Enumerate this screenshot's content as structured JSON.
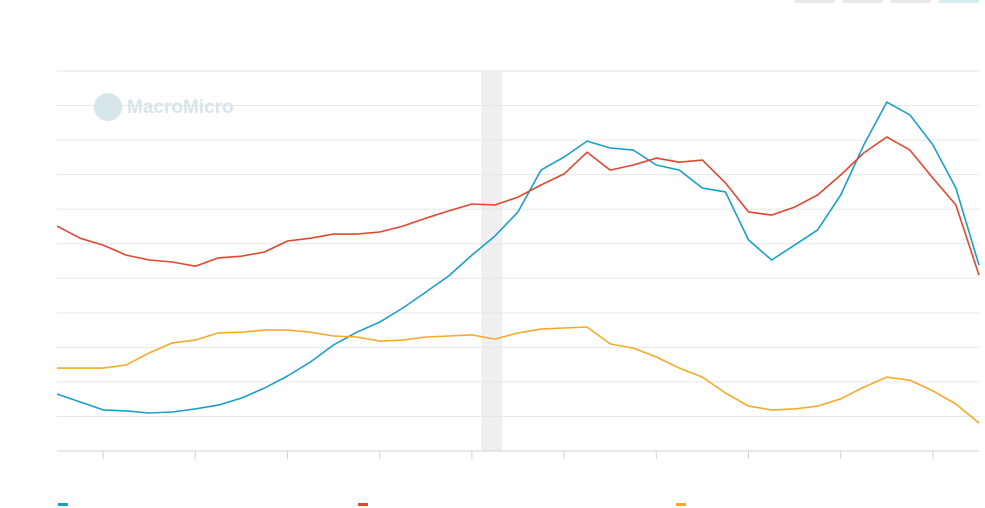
{
  "watermark": "MacroMicro",
  "chart_data": {
    "type": "line",
    "x": [
      0,
      2.5,
      5,
      7.5,
      10,
      12.5,
      15,
      17.5,
      20,
      22.5,
      25,
      27.5,
      30,
      32.5,
      35,
      37.5,
      40,
      42.5,
      45,
      47.5,
      50,
      52.5,
      55,
      57.5,
      60,
      62.5,
      65,
      67.5,
      70,
      72.5,
      75,
      77.5,
      80,
      82.5,
      85,
      87.5,
      90,
      92.5,
      95,
      97.5,
      100
    ],
    "xlim": [
      0,
      100
    ],
    "xticks": [
      5,
      15,
      25,
      35,
      45,
      55,
      65,
      75,
      85,
      95
    ],
    "ylim": [
      0,
      11
    ],
    "yticks": [
      0,
      1,
      2,
      3,
      4,
      5,
      6,
      7,
      8,
      9,
      10,
      11
    ],
    "grid": true,
    "shaded_range": [
      46,
      48.3
    ],
    "series": [
      {
        "color": "#1aa0c8",
        "values": [
          1.65,
          1.42,
          1.19,
          1.16,
          1.1,
          1.13,
          1.22,
          1.33,
          1.53,
          1.82,
          2.17,
          2.58,
          3.07,
          3.44,
          3.73,
          4.14,
          4.6,
          5.07,
          5.67,
          6.22,
          6.92,
          8.13,
          8.51,
          8.97,
          8.77,
          8.71,
          8.28,
          8.13,
          7.61,
          7.5,
          6.11,
          5.53,
          5.96,
          6.4,
          7.41,
          8.86,
          10.1,
          9.73,
          8.86,
          7.61,
          5.38
        ]
      },
      {
        "color": "#e0482e",
        "values": [
          6.51,
          6.16,
          5.96,
          5.67,
          5.53,
          5.47,
          5.35,
          5.59,
          5.64,
          5.76,
          6.08,
          6.16,
          6.28,
          6.28,
          6.34,
          6.51,
          6.74,
          6.95,
          7.15,
          7.12,
          7.35,
          7.7,
          8.02,
          8.65,
          8.13,
          8.28,
          8.48,
          8.36,
          8.42,
          7.76,
          6.92,
          6.83,
          7.06,
          7.41,
          7.99,
          8.63,
          9.09,
          8.71,
          7.9,
          7.12,
          5.09
        ]
      },
      {
        "color": "#f5aa2a",
        "values": [
          2.4,
          2.4,
          2.4,
          2.49,
          2.84,
          3.13,
          3.21,
          3.42,
          3.44,
          3.5,
          3.5,
          3.44,
          3.33,
          3.3,
          3.18,
          3.21,
          3.3,
          3.33,
          3.36,
          3.24,
          3.42,
          3.53,
          3.56,
          3.59,
          3.1,
          2.98,
          2.72,
          2.4,
          2.14,
          1.68,
          1.3,
          1.19,
          1.22,
          1.3,
          1.51,
          1.85,
          2.14,
          2.05,
          1.74,
          1.36,
          0.81
        ]
      }
    ]
  }
}
